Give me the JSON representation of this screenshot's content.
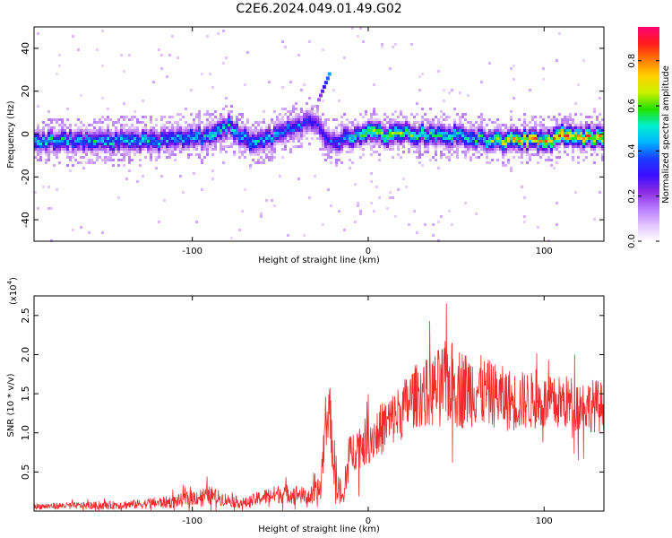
{
  "title": "C2E6.2024.049.01.49.G02",
  "colors": {
    "snr_line": "#ee2a2a",
    "colormap": [
      "#ffffff",
      "#e2c2ff",
      "#b87aff",
      "#8a2be2",
      "#3a0cff",
      "#1a3cff",
      "#00b4ff",
      "#00f0d0",
      "#22e000",
      "#c8f000",
      "#ffd200",
      "#ff7a00",
      "#ff1a1a",
      "#ff0078"
    ]
  },
  "chart_data": [
    {
      "type": "heatmap",
      "xlabel": "Height of straight line (km)",
      "ylabel": "Frequency (Hz)",
      "xlim": [
        -190,
        134
      ],
      "ylim": [
        -50,
        50
      ],
      "xticks": [
        -100,
        0,
        100
      ],
      "xtick_labels": [
        "-100",
        "0",
        "100"
      ],
      "yticks": [
        -40,
        -20,
        0,
        20,
        40
      ],
      "ytick_labels": [
        "-40",
        "-20",
        "0",
        "20",
        "40"
      ],
      "grid": false,
      "colorbar": {
        "label": "Normalized spectral amplitude",
        "range": [
          0,
          0.95
        ],
        "ticks": [
          0,
          0.2,
          0.4,
          0.6,
          0.8
        ],
        "tick_labels": [
          "0.0",
          "0.2",
          "0.4",
          "0.6",
          "0.8"
        ]
      },
      "band_center_hz": {
        "x": [
          -190,
          -170,
          -150,
          -130,
          -110,
          -90,
          -80,
          -70,
          -60,
          -50,
          -40,
          -30,
          -25,
          -20,
          -10,
          0,
          10,
          20,
          30,
          40,
          50,
          60,
          70,
          80,
          90,
          100,
          110,
          120,
          134
        ],
        "y": [
          -3,
          -2,
          -3,
          -3,
          -2,
          0,
          4,
          -2,
          -3,
          2,
          5,
          6,
          -2,
          -3,
          -1,
          1,
          0,
          2,
          0,
          1,
          0,
          -1,
          -3,
          -2,
          -2,
          -3,
          0,
          -1,
          -1
        ]
      },
      "band_amplitude": {
        "x": [
          -190,
          -150,
          -100,
          -80,
          -50,
          -30,
          -20,
          0,
          30,
          60,
          80,
          100,
          120,
          134
        ],
        "amp": [
          0.5,
          0.5,
          0.5,
          0.55,
          0.45,
          0.35,
          0.4,
          0.7,
          0.6,
          0.55,
          0.75,
          0.8,
          0.85,
          0.8
        ]
      },
      "features": [
        {
          "name": "upward spot",
          "x": [
            -22,
            -28
          ],
          "y": [
            28,
            16
          ],
          "amp": 0.45
        }
      ]
    },
    {
      "type": "line",
      "xlabel": "Height of straight line (km)",
      "ylabel": "SNR (10 * v/v)",
      "multiplier": "(x10",
      "multiplier_exp": "4",
      "xlim": [
        -190,
        134
      ],
      "ylim": [
        0,
        2.75
      ],
      "xticks": [
        -100,
        0,
        100
      ],
      "xtick_labels": [
        "-100",
        "0",
        "100"
      ],
      "yticks": [
        0.5,
        1.0,
        1.5,
        2.0,
        2.5
      ],
      "ytick_labels": [
        "0.5",
        "1.0",
        "1.5",
        "2.0",
        "2.5"
      ],
      "grid": false,
      "series": [
        {
          "x": [
            -190,
            -170,
            -150,
            -130,
            -110,
            -100,
            -90,
            -80,
            -70,
            -60,
            -50,
            -40,
            -35,
            -30,
            -27,
            -25,
            -22,
            -20,
            -17,
            -14,
            -12,
            -10,
            -5,
            0,
            5,
            10,
            15,
            20,
            25,
            30,
            35,
            40,
            45,
            50,
            55,
            60,
            65,
            70,
            75,
            80,
            85,
            90,
            95,
            100,
            105,
            110,
            115,
            120,
            125,
            130,
            134
          ],
          "y": [
            0.06,
            0.07,
            0.07,
            0.09,
            0.12,
            0.17,
            0.2,
            0.14,
            0.1,
            0.18,
            0.22,
            0.22,
            0.18,
            0.2,
            0.3,
            0.95,
            1.35,
            0.7,
            0.3,
            0.12,
            0.55,
            0.75,
            0.85,
            0.9,
            1.0,
            1.1,
            1.2,
            1.3,
            1.45,
            1.5,
            1.52,
            1.58,
            1.65,
            1.6,
            1.55,
            1.58,
            1.52,
            1.5,
            1.45,
            1.42,
            1.4,
            1.42,
            1.4,
            1.38,
            1.36,
            1.4,
            1.38,
            1.36,
            1.35,
            1.35,
            1.3
          ],
          "noise": [
            0.04,
            0.04,
            0.05,
            0.06,
            0.08,
            0.1,
            0.12,
            0.08,
            0.07,
            0.1,
            0.12,
            0.12,
            0.1,
            0.15,
            0.25,
            0.3,
            0.3,
            0.35,
            0.25,
            0.1,
            0.25,
            0.25,
            0.3,
            0.3,
            0.32,
            0.35,
            0.35,
            0.38,
            0.4,
            0.42,
            0.45,
            0.5,
            0.55,
            0.55,
            0.5,
            0.5,
            0.45,
            0.42,
            0.42,
            0.4,
            0.38,
            0.38,
            0.36,
            0.36,
            0.35,
            0.35,
            0.35,
            0.34,
            0.34,
            0.34,
            0.34
          ]
        }
      ]
    }
  ]
}
